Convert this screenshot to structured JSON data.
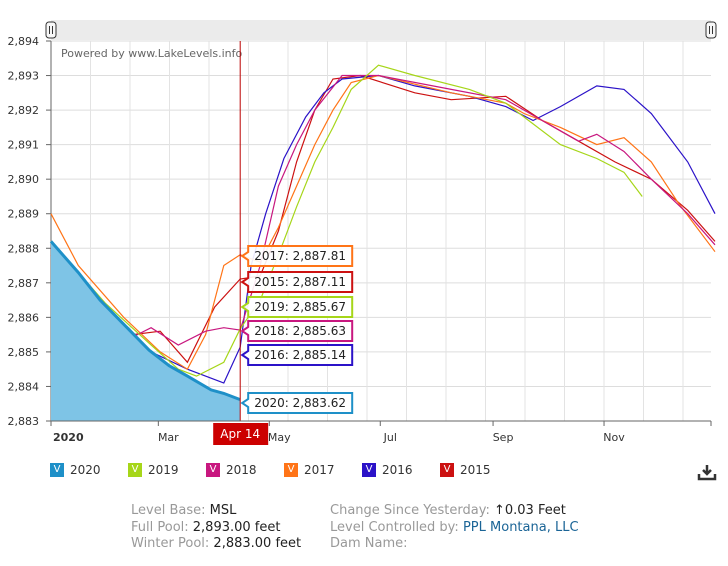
{
  "watermark": "Powered by www.LakeLevels.info",
  "chart_data": {
    "type": "line",
    "title": "",
    "xlabel": "",
    "ylabel": "",
    "ylim": [
      2883,
      2894
    ],
    "yticks": [
      "2,883",
      "2,884",
      "2,885",
      "2,886",
      "2,887",
      "2,888",
      "2,889",
      "2,890",
      "2,891",
      "2,892",
      "2,893",
      "2,894"
    ],
    "xticks": [
      {
        "label": "2020",
        "doy": 0
      },
      {
        "label": "Mar",
        "doy": 59
      },
      {
        "label": "May",
        "doy": 120
      },
      {
        "label": "Jul",
        "doy": 181
      },
      {
        "label": "Sep",
        "doy": 243
      },
      {
        "label": "Nov",
        "doy": 304
      }
    ],
    "cursor": {
      "label": "Apr 14",
      "doy": 104
    },
    "x_unit": "day of year",
    "series": [
      {
        "name": "2020",
        "color": "#1e90c8",
        "area": true,
        "tooltip": "2020: 2,883.62",
        "points": [
          [
            0,
            2888.2
          ],
          [
            15,
            2887.3
          ],
          [
            27,
            2886.5
          ],
          [
            40,
            2885.8
          ],
          [
            54,
            2885.05
          ],
          [
            65,
            2884.6
          ],
          [
            75,
            2884.3
          ],
          [
            88,
            2883.9
          ],
          [
            95,
            2883.8
          ],
          [
            104,
            2883.62
          ]
        ]
      },
      {
        "name": "2019",
        "color": "#a6d619",
        "tooltip": "2019: 2,885.67",
        "points": [
          [
            0,
            2888.2
          ],
          [
            30,
            2886.4
          ],
          [
            55,
            2885.2
          ],
          [
            70,
            2884.5
          ],
          [
            80,
            2884.3
          ],
          [
            95,
            2884.7
          ],
          [
            104,
            2885.67
          ],
          [
            115,
            2886.5
          ],
          [
            125,
            2887.8
          ],
          [
            135,
            2889.2
          ],
          [
            145,
            2890.5
          ],
          [
            155,
            2891.5
          ],
          [
            165,
            2892.6
          ],
          [
            180,
            2893.3
          ],
          [
            200,
            2893.0
          ],
          [
            230,
            2892.6
          ],
          [
            250,
            2892.2
          ],
          [
            265,
            2891.6
          ],
          [
            280,
            2891.0
          ],
          [
            300,
            2890.6
          ],
          [
            315,
            2890.2
          ],
          [
            325,
            2889.5
          ]
        ]
      },
      {
        "name": "2018",
        "color": "#c8177f",
        "tooltip": "2018: 2,885.63",
        "points": [
          [
            0,
            2888
          ],
          [
            20,
            2886.3
          ],
          [
            40,
            2885.3
          ],
          [
            55,
            2885.7
          ],
          [
            70,
            2885.2
          ],
          [
            85,
            2885.6
          ],
          [
            95,
            2885.7
          ],
          [
            104,
            2885.63
          ],
          [
            115,
            2887.5
          ],
          [
            125,
            2889.8
          ],
          [
            135,
            2891.0
          ],
          [
            145,
            2892.0
          ],
          [
            160,
            2893.0
          ],
          [
            180,
            2893.0
          ],
          [
            220,
            2892.6
          ],
          [
            250,
            2892.3
          ],
          [
            270,
            2891.7
          ],
          [
            290,
            2891.1
          ],
          [
            300,
            2891.3
          ],
          [
            315,
            2890.8
          ],
          [
            330,
            2890.0
          ],
          [
            350,
            2889
          ],
          [
            365,
            2888.1
          ]
        ]
      },
      {
        "name": "2017",
        "color": "#ff7417",
        "tooltip": "2017: 2,887.81",
        "points": [
          [
            0,
            2889
          ],
          [
            15,
            2887.5
          ],
          [
            40,
            2886
          ],
          [
            60,
            2885
          ],
          [
            75,
            2884.5
          ],
          [
            85,
            2885.5
          ],
          [
            95,
            2887.5
          ],
          [
            104,
            2887.81
          ],
          [
            115,
            2887.6
          ],
          [
            125,
            2888.6
          ],
          [
            135,
            2889.8
          ],
          [
            145,
            2891
          ],
          [
            155,
            2892
          ],
          [
            165,
            2892.8
          ],
          [
            180,
            2893
          ],
          [
            220,
            2892.5
          ],
          [
            250,
            2892.2
          ],
          [
            260,
            2891.9
          ],
          [
            280,
            2891.5
          ],
          [
            300,
            2891.0
          ],
          [
            315,
            2891.2
          ],
          [
            330,
            2890.5
          ],
          [
            345,
            2889.3
          ],
          [
            365,
            2887.9
          ]
        ]
      },
      {
        "name": "2016",
        "color": "#2b12c8",
        "tooltip": "2016: 2,885.14",
        "points": [
          [
            0,
            2888
          ],
          [
            30,
            2886
          ],
          [
            55,
            2885
          ],
          [
            75,
            2884.5
          ],
          [
            95,
            2884.1
          ],
          [
            104,
            2885.14
          ],
          [
            110,
            2887.5
          ],
          [
            118,
            2889
          ],
          [
            128,
            2890.6
          ],
          [
            140,
            2891.8
          ],
          [
            150,
            2892.5
          ],
          [
            160,
            2892.9
          ],
          [
            180,
            2893
          ],
          [
            200,
            2892.7
          ],
          [
            230,
            2892.4
          ],
          [
            250,
            2892.1
          ],
          [
            265,
            2891.7
          ],
          [
            280,
            2892.1
          ],
          [
            300,
            2892.7
          ],
          [
            315,
            2892.6
          ],
          [
            330,
            2891.9
          ],
          [
            350,
            2890.5
          ],
          [
            365,
            2889
          ]
        ]
      },
      {
        "name": "2015",
        "color": "#cc1111",
        "tooltip": "2015: 2,887.11",
        "points": [
          [
            0,
            2887.8
          ],
          [
            25,
            2886.2
          ],
          [
            45,
            2885.5
          ],
          [
            60,
            2885.6
          ],
          [
            75,
            2884.7
          ],
          [
            90,
            2886.3
          ],
          [
            104,
            2887.11
          ],
          [
            115,
            2887.2
          ],
          [
            125,
            2888.5
          ],
          [
            135,
            2890.5
          ],
          [
            145,
            2892
          ],
          [
            155,
            2892.9
          ],
          [
            170,
            2893
          ],
          [
            200,
            2892.5
          ],
          [
            220,
            2892.3
          ],
          [
            250,
            2892.4
          ],
          [
            270,
            2891.7
          ],
          [
            290,
            2891.1
          ],
          [
            310,
            2890.5
          ],
          [
            330,
            2890.0
          ],
          [
            350,
            2889.1
          ],
          [
            365,
            2888.2
          ]
        ]
      }
    ]
  },
  "info": {
    "level_base_label": "Level Base:",
    "level_base": "MSL",
    "full_pool_label": "Full Pool:",
    "full_pool": "2,893.00 feet",
    "winter_pool_label": "Winter Pool:",
    "winter_pool": "2,883.00 feet",
    "change_label": "Change Since Yesterday:",
    "change_icon": "up-arrow-icon",
    "change_arrow": "↑",
    "change": "0.03 Feet",
    "controlled_label": "Level Controlled by:",
    "controlled": "PPL Montana, LLC",
    "dam_label": "Dam Name:"
  },
  "download_icon": "download-icon"
}
